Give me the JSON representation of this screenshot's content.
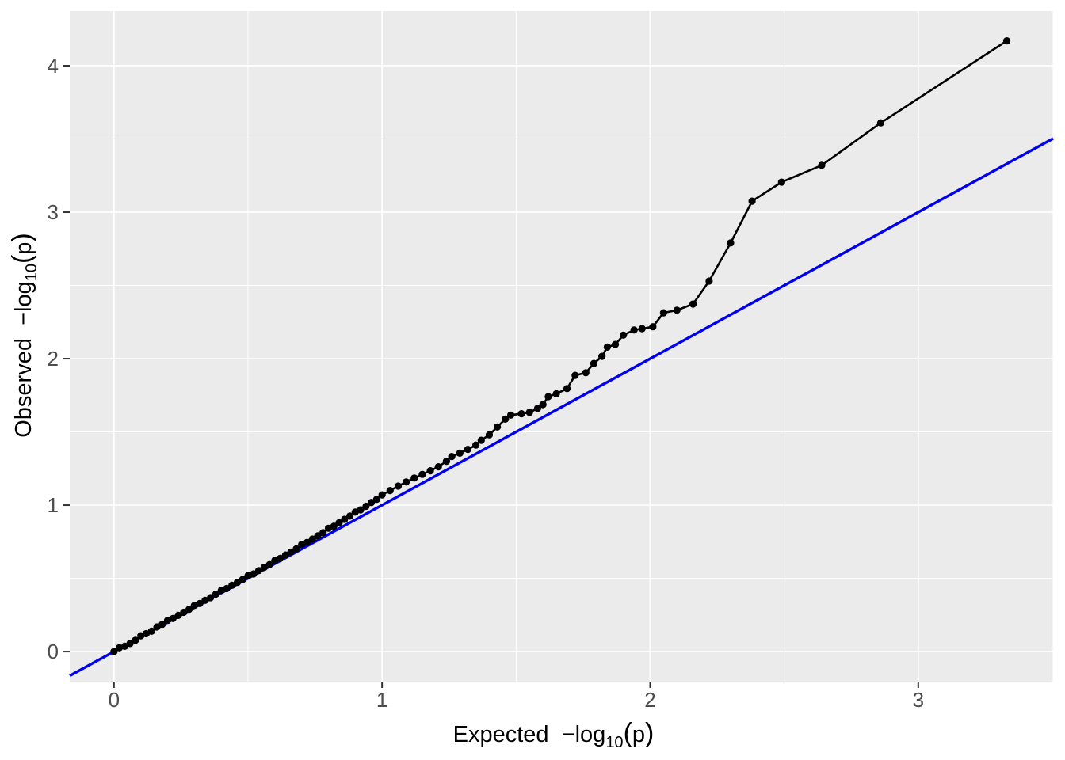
{
  "page": {
    "background": "#FFFFFF"
  },
  "style": {
    "panel_bg": "#EBEBEB",
    "grid_color": "#FFFFFF",
    "tick_label_color": "#4D4D4D",
    "axis_title_color": "#000000",
    "tick_mark_color": "#333333",
    "point_color": "#000000",
    "series_line_color": "#000000",
    "reference_line_color": "#0000EE"
  },
  "chart_data": {
    "type": "scatter",
    "title": "",
    "xlabel": "Expected −log10(p)",
    "ylabel": "Observed −log10(p)",
    "xlabel_parts": {
      "prefix": "Expected  −log",
      "sub": "10",
      "suffix": "(p)"
    },
    "ylabel_parts": {
      "prefix": "Observed  −log",
      "sub": "10",
      "suffix": "(p)"
    },
    "xlim": [
      -0.165,
      3.503
    ],
    "ylim": [
      -0.205,
      4.373
    ],
    "x_ticks": [
      "0",
      "1",
      "2",
      "3"
    ],
    "x_tick_values": [
      0,
      1,
      2,
      3
    ],
    "y_ticks": [
      "0",
      "1",
      "2",
      "3",
      "4"
    ],
    "y_tick_values": [
      0,
      1,
      2,
      3,
      4
    ],
    "x_minor_values": [
      0.5,
      1.5,
      2.5,
      3.5
    ],
    "y_minor_values": [
      0.5,
      1.5,
      2.5,
      3.5
    ],
    "grid": true,
    "legend_position": "none",
    "reference_line": {
      "intercept": 0,
      "slope": 1
    },
    "series": [
      {
        "name": "qq-points",
        "mark": "point+line",
        "points": [
          [
            0.0,
            0.0
          ],
          [
            0.02,
            0.026
          ],
          [
            0.04,
            0.036
          ],
          [
            0.06,
            0.055
          ],
          [
            0.08,
            0.077
          ],
          [
            0.1,
            0.108
          ],
          [
            0.12,
            0.122
          ],
          [
            0.14,
            0.139
          ],
          [
            0.16,
            0.168
          ],
          [
            0.18,
            0.186
          ],
          [
            0.2,
            0.213
          ],
          [
            0.22,
            0.226
          ],
          [
            0.24,
            0.247
          ],
          [
            0.26,
            0.268
          ],
          [
            0.28,
            0.288
          ],
          [
            0.3,
            0.315
          ],
          [
            0.32,
            0.328
          ],
          [
            0.34,
            0.35
          ],
          [
            0.36,
            0.368
          ],
          [
            0.38,
            0.392
          ],
          [
            0.4,
            0.417
          ],
          [
            0.42,
            0.43
          ],
          [
            0.44,
            0.452
          ],
          [
            0.46,
            0.472
          ],
          [
            0.48,
            0.492
          ],
          [
            0.5,
            0.518
          ],
          [
            0.52,
            0.53
          ],
          [
            0.54,
            0.553
          ],
          [
            0.56,
            0.575
          ],
          [
            0.58,
            0.594
          ],
          [
            0.6,
            0.622
          ],
          [
            0.62,
            0.636
          ],
          [
            0.64,
            0.659
          ],
          [
            0.66,
            0.68
          ],
          [
            0.68,
            0.701
          ],
          [
            0.7,
            0.731
          ],
          [
            0.72,
            0.745
          ],
          [
            0.74,
            0.768
          ],
          [
            0.76,
            0.79
          ],
          [
            0.78,
            0.812
          ],
          [
            0.8,
            0.842
          ],
          [
            0.82,
            0.856
          ],
          [
            0.84,
            0.88
          ],
          [
            0.86,
            0.903
          ],
          [
            0.88,
            0.925
          ],
          [
            0.9,
            0.952
          ],
          [
            0.92,
            0.968
          ],
          [
            0.94,
            0.992
          ],
          [
            0.96,
            1.018
          ],
          [
            0.98,
            1.04
          ],
          [
            1.0,
            1.07
          ],
          [
            1.03,
            1.1
          ],
          [
            1.06,
            1.13
          ],
          [
            1.09,
            1.158
          ],
          [
            1.12,
            1.185
          ],
          [
            1.15,
            1.21
          ],
          [
            1.18,
            1.235
          ],
          [
            1.21,
            1.262
          ],
          [
            1.24,
            1.3
          ],
          [
            1.26,
            1.332
          ],
          [
            1.29,
            1.355
          ],
          [
            1.32,
            1.381
          ],
          [
            1.35,
            1.41
          ],
          [
            1.37,
            1.443
          ],
          [
            1.4,
            1.48
          ],
          [
            1.43,
            1.534
          ],
          [
            1.46,
            1.588
          ],
          [
            1.48,
            1.615
          ],
          [
            1.52,
            1.624
          ],
          [
            1.55,
            1.633
          ],
          [
            1.58,
            1.66
          ],
          [
            1.6,
            1.687
          ],
          [
            1.62,
            1.741
          ],
          [
            1.65,
            1.76
          ],
          [
            1.69,
            1.796
          ],
          [
            1.72,
            1.886
          ],
          [
            1.76,
            1.904
          ],
          [
            1.79,
            1.967
          ],
          [
            1.82,
            2.016
          ],
          [
            1.84,
            2.079
          ],
          [
            1.87,
            2.097
          ],
          [
            1.9,
            2.161
          ],
          [
            1.94,
            2.196
          ],
          [
            1.97,
            2.205
          ],
          [
            2.01,
            2.218
          ],
          [
            2.05,
            2.313
          ],
          [
            2.1,
            2.331
          ],
          [
            2.16,
            2.373
          ],
          [
            2.22,
            2.53
          ],
          [
            2.3,
            2.79
          ],
          [
            2.38,
            3.075
          ],
          [
            2.49,
            3.205
          ],
          [
            2.64,
            3.32
          ],
          [
            2.86,
            3.61
          ],
          [
            3.33,
            4.17
          ]
        ]
      }
    ]
  }
}
